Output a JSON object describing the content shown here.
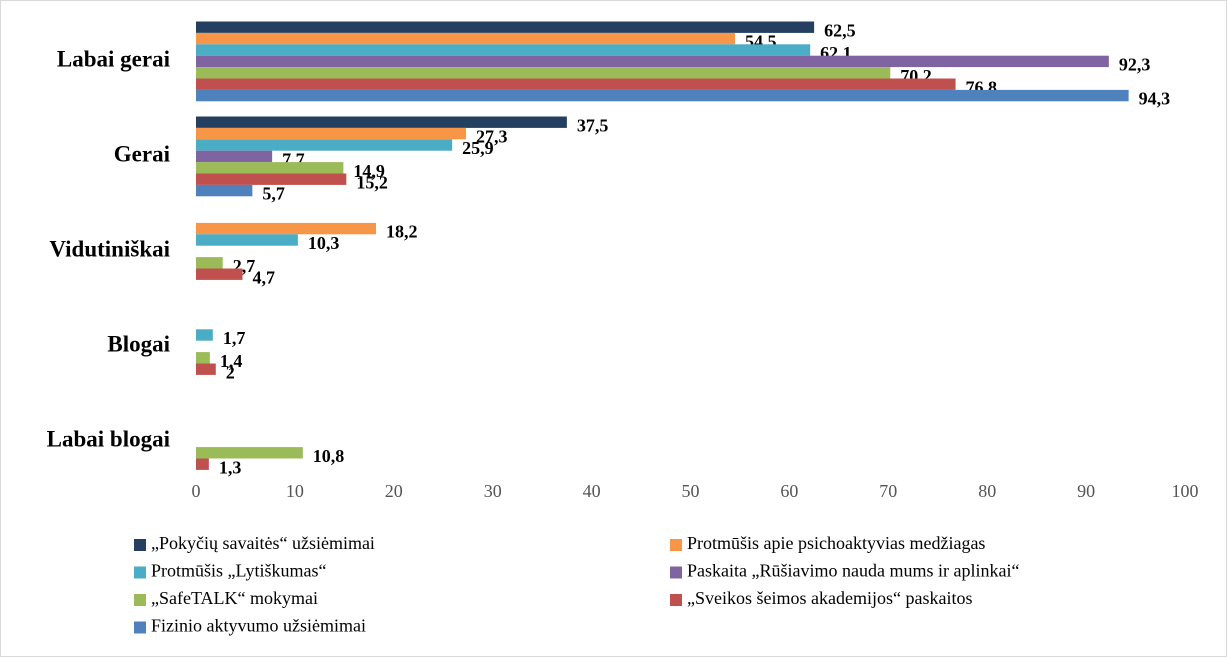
{
  "chart_data": {
    "type": "bar",
    "orientation": "horizontal",
    "categories": [
      "Labai gerai",
      "Gerai",
      "Vidutiniškai",
      "Blogai",
      "Labai blogai"
    ],
    "series": [
      {
        "name": "„Pokyčių savaitės“ užsiėmimai",
        "color": "#243f60",
        "values": [
          62.5,
          37.5,
          null,
          null,
          null
        ],
        "value_labels": [
          "62,5",
          "37,5",
          null,
          null,
          null
        ]
      },
      {
        "name": "Protmūšis apie psichoaktyvias medžiagas",
        "color": "#f79646",
        "values": [
          54.5,
          27.3,
          18.2,
          null,
          null
        ],
        "value_labels": [
          "54,5",
          "27,3",
          "18,2",
          null,
          null
        ]
      },
      {
        "name": "Protmūšis „Lytiškumas“",
        "color": "#4bacc6",
        "values": [
          62.1,
          25.9,
          10.3,
          1.7,
          null
        ],
        "value_labels": [
          "62,1",
          "25,9",
          "10,3",
          "1,7",
          null
        ]
      },
      {
        "name": "Paskaita „Rūšiavimo nauda mums ir aplinkai“",
        "color": "#8064a2",
        "values": [
          92.3,
          7.7,
          null,
          null,
          null
        ],
        "value_labels": [
          "92,3",
          "7,7",
          null,
          null,
          null
        ]
      },
      {
        "name": "„SafeTALK“  mokymai",
        "color": "#9bbb59",
        "values": [
          70.2,
          14.9,
          2.7,
          1.4,
          10.8
        ],
        "value_labels": [
          "70,2",
          "14,9",
          "2,7",
          "1,4",
          "10,8"
        ]
      },
      {
        "name": "„Sveikos šeimos akademijos“ paskaitos",
        "color": "#c0504d",
        "values": [
          76.8,
          15.2,
          4.7,
          2,
          1.3
        ],
        "value_labels": [
          "76,8",
          "15,2",
          "4,7",
          "2",
          "1,3"
        ]
      },
      {
        "name": "Fizinio aktyvumo užsiėmimai",
        "color": "#4f81bd",
        "values": [
          94.3,
          5.7,
          null,
          null,
          null
        ],
        "value_labels": [
          "94,3",
          "5,7",
          null,
          null,
          null
        ]
      }
    ],
    "xlim": [
      0,
      100
    ],
    "xticks": [
      0,
      10,
      20,
      30,
      40,
      50,
      60,
      70,
      80,
      90,
      100
    ],
    "grid": false,
    "legend": "bottom"
  }
}
